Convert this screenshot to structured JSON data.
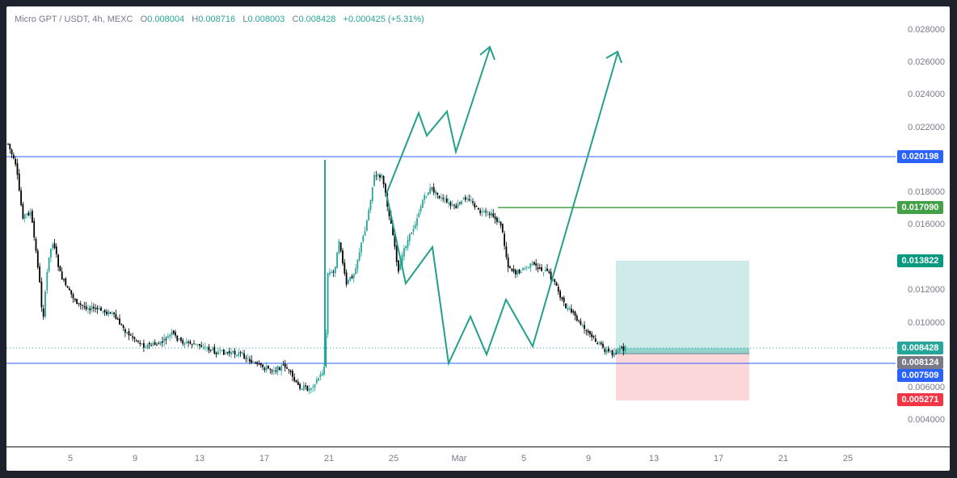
{
  "legend": {
    "symbol": "Micro GPT / USDT, 4h, MEXC",
    "o_label": "O",
    "o_value": "0.008004",
    "h_label": "H",
    "h_value": "0.008716",
    "l_label": "L",
    "l_value": "0.008003",
    "c_label": "C",
    "c_value": "0.008428",
    "change": "+0.000425 (+5.31%)"
  },
  "y_axis": {
    "ticks": [
      "0.028000",
      "0.026000",
      "0.024000",
      "0.022000",
      "0.018000",
      "0.016000",
      "0.012000",
      "0.010000",
      "0.006000",
      "0.004000"
    ]
  },
  "x_axis": {
    "ticks": [
      "5",
      "9",
      "13",
      "17",
      "21",
      "25",
      "Mar",
      "5",
      "9",
      "13",
      "17",
      "21",
      "25"
    ]
  },
  "price_tags": [
    {
      "label": "0.020198",
      "color": "#2962ff"
    },
    {
      "label": "0.017090",
      "color": "#43a047"
    },
    {
      "label": "0.013822",
      "color": "#089981"
    },
    {
      "label": "0.008428",
      "color": "#26a69a"
    },
    {
      "label": "0.008124",
      "color": "#787b86"
    },
    {
      "label": "0.007509",
      "color": "#2962ff"
    },
    {
      "label": "0.005271",
      "color": "#f23645"
    }
  ],
  "colors": {
    "up": "#26a69a",
    "down": "#000000",
    "hline_blue": "#2962ff",
    "hline_green": "#43a047",
    "target_fill": "#26a69a",
    "stop_fill": "#f23645",
    "arrow": "#22a08a"
  }
}
